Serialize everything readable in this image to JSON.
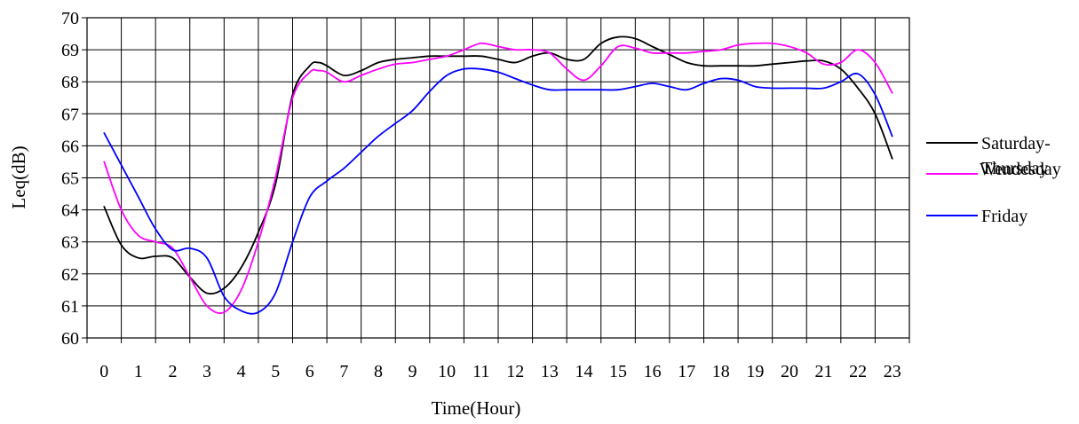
{
  "chart_data": {
    "type": "line",
    "title": "",
    "xlabel": "Time(Hour)",
    "ylabel": "Leq(dB)",
    "ylim": [
      60,
      70
    ],
    "xlim": [
      -0.5,
      23.5
    ],
    "yticks": [
      60,
      61,
      62,
      63,
      64,
      65,
      66,
      67,
      68,
      69,
      70
    ],
    "xticks": [
      0,
      1,
      2,
      3,
      4,
      5,
      6,
      7,
      8,
      9,
      10,
      11,
      12,
      13,
      14,
      15,
      16,
      17,
      18,
      19,
      20,
      21,
      22,
      23
    ],
    "grid": true,
    "legend_position": "right",
    "series": [
      {
        "name": "Saturday-Wendesday",
        "color": "#000000",
        "x": [
          0,
          0.5,
          1,
          1.5,
          2,
          2.5,
          3,
          3.5,
          4,
          4.5,
          5,
          5.5,
          6,
          6.25,
          6.5,
          7,
          7.5,
          8,
          8.5,
          9,
          9.5,
          10,
          10.5,
          11,
          11.5,
          12,
          12.5,
          13,
          13.5,
          14,
          14.5,
          15,
          15.5,
          16,
          16.5,
          17,
          17.5,
          18,
          18.5,
          19,
          19.5,
          20,
          20.5,
          21,
          21.5,
          22,
          22.5,
          23
        ],
        "y": [
          64.1,
          62.9,
          62.5,
          62.55,
          62.5,
          61.9,
          61.4,
          61.55,
          62.2,
          63.3,
          64.8,
          67.6,
          68.5,
          68.6,
          68.5,
          68.2,
          68.35,
          68.6,
          68.7,
          68.75,
          68.8,
          68.8,
          68.8,
          68.8,
          68.7,
          68.6,
          68.8,
          68.9,
          68.7,
          68.7,
          69.2,
          69.4,
          69.35,
          69.1,
          68.85,
          68.6,
          68.5,
          68.5,
          68.5,
          68.5,
          68.55,
          68.6,
          68.65,
          68.65,
          68.4,
          67.8,
          67.0,
          65.6
        ]
      },
      {
        "name": "Thursday",
        "color": "#ff00ff",
        "x": [
          0,
          0.5,
          1,
          1.5,
          2,
          2.5,
          3,
          3.5,
          4,
          4.5,
          5,
          5.5,
          6,
          6.25,
          6.5,
          7,
          7.5,
          8,
          8.5,
          9,
          9.5,
          10,
          10.5,
          11,
          11.5,
          12,
          12.5,
          13,
          13.5,
          14,
          14.5,
          15,
          15.5,
          16,
          16.5,
          17,
          17.5,
          18,
          18.5,
          19,
          19.5,
          20,
          20.5,
          21,
          21.5,
          22,
          22.5,
          23
        ],
        "y": [
          65.5,
          64.0,
          63.2,
          63.0,
          62.8,
          61.9,
          61.0,
          60.8,
          61.5,
          63.0,
          65.0,
          67.5,
          68.3,
          68.35,
          68.3,
          68.0,
          68.2,
          68.4,
          68.55,
          68.6,
          68.7,
          68.8,
          69.0,
          69.2,
          69.1,
          69.0,
          69.0,
          68.9,
          68.4,
          68.05,
          68.5,
          69.1,
          69.05,
          68.9,
          68.9,
          68.9,
          68.95,
          69.0,
          69.15,
          69.2,
          69.2,
          69.1,
          68.9,
          68.55,
          68.6,
          69.0,
          68.6,
          67.65
        ]
      },
      {
        "name": "Friday",
        "color": "#0000ff",
        "x": [
          0,
          0.5,
          1,
          1.5,
          2,
          2.5,
          3,
          3.5,
          4,
          4.5,
          5,
          5.5,
          6,
          6.5,
          7,
          7.5,
          8,
          8.5,
          9,
          9.5,
          10,
          10.5,
          11,
          11.5,
          12,
          12.5,
          13,
          13.5,
          14,
          14.5,
          15,
          15.5,
          16,
          16.5,
          17,
          17.5,
          18,
          18.5,
          19,
          19.5,
          20,
          20.5,
          21,
          21.5,
          22,
          22.5,
          23
        ],
        "y": [
          66.4,
          65.4,
          64.4,
          63.4,
          62.75,
          62.8,
          62.5,
          61.3,
          60.85,
          60.8,
          61.4,
          63.0,
          64.4,
          64.9,
          65.3,
          65.8,
          66.3,
          66.7,
          67.1,
          67.7,
          68.2,
          68.4,
          68.4,
          68.3,
          68.1,
          67.9,
          67.75,
          67.75,
          67.75,
          67.75,
          67.75,
          67.85,
          67.95,
          67.85,
          67.75,
          67.95,
          68.1,
          68.05,
          67.85,
          67.8,
          67.8,
          67.8,
          67.8,
          68.0,
          68.25,
          67.6,
          66.3
        ]
      }
    ]
  }
}
